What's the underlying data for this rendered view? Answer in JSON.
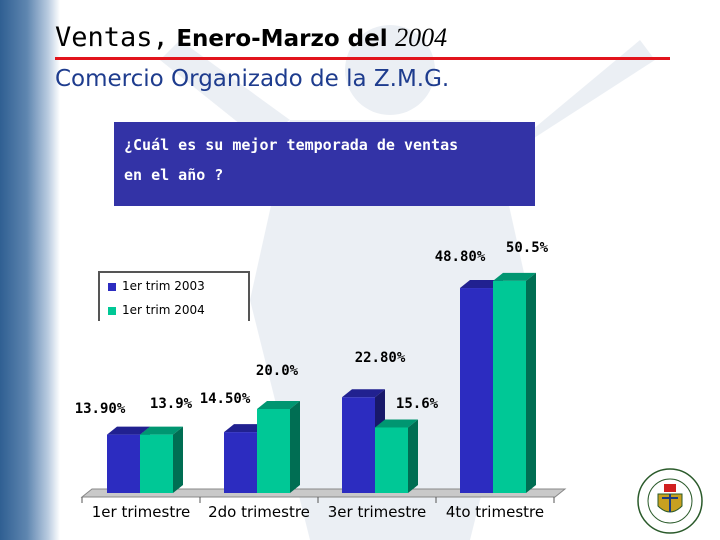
{
  "slide": {
    "title_part1": "Ventas,",
    "title_part2": "Enero-Marzo del",
    "title_part3": "2004",
    "subtitle": "Comercio Organizado de la Z.M.G.",
    "question_line1": "¿Cuál es su mejor temporada de ventas",
    "question_line2": "en el año ?",
    "seal_text": "CAMARA DE COMERCIO DE GUADALAJARA"
  },
  "colors": {
    "series_2003": "#2c2cc0",
    "series_2004": "#00c896",
    "accent_rule": "#e2141c",
    "question_box": "#3333a6",
    "subtitle_text": "#1e3c8e"
  },
  "chart_data": {
    "type": "bar",
    "title": "",
    "xlabel": "",
    "ylabel": "",
    "ylim": [
      0,
      60
    ],
    "grid": false,
    "legend_position": "top-left",
    "categories": [
      "1er trimestre",
      "2do trimestre",
      "3er trimestre",
      "4to trimestre"
    ],
    "series": [
      {
        "name": "1er trim 2003",
        "values": [
          13.9,
          14.5,
          22.8,
          48.8
        ],
        "labels": [
          "13.90%",
          "14.50%",
          "22.80%",
          "48.80%"
        ]
      },
      {
        "name": "1er trim 2004",
        "values": [
          13.9,
          20.0,
          15.6,
          50.5
        ],
        "labels": [
          "13.9%",
          "20.0%",
          "15.6%",
          "50.5%"
        ]
      }
    ]
  }
}
